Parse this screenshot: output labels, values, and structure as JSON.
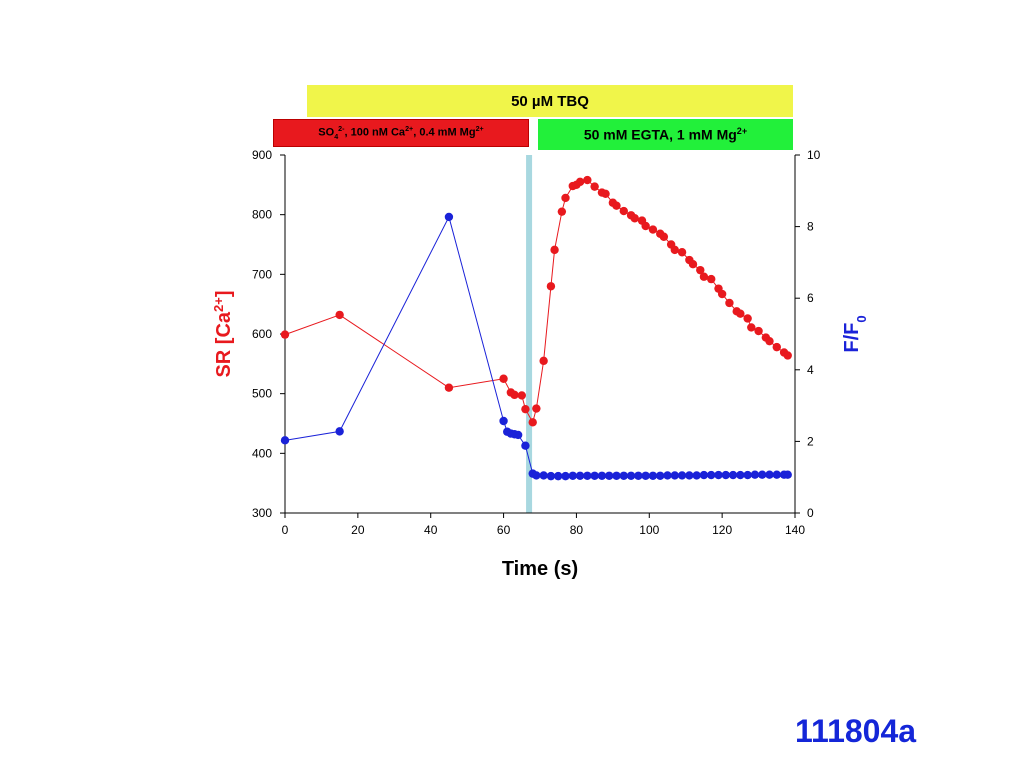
{
  "annotations": {
    "tbq": "50 µM TBQ",
    "so4_parts": [
      "SO",
      "4",
      "2-",
      ", 100 nM Ca",
      "2+",
      ", 0.4 mM Mg",
      "2+"
    ],
    "egta_parts": [
      "50 mM EGTA, 1 mM Mg",
      "2+"
    ]
  },
  "figure_id": "111804a",
  "colors": {
    "red": "#e8191e",
    "blue": "#1a22d8",
    "marker_line": "#a8d8e0",
    "tbq": "#f0f54a",
    "egta": "#22f03a"
  },
  "chart_data": {
    "type": "scatter",
    "xlabel": "Time (s)",
    "ylabel_left_parts": [
      "SR [Ca",
      "2+",
      "]"
    ],
    "ylabel_right_parts": [
      "F/F",
      "0"
    ],
    "xlim": [
      0,
      140
    ],
    "ylim_left": [
      300,
      900
    ],
    "ylim_right": [
      0,
      10
    ],
    "x_ticks": [
      0,
      20,
      40,
      60,
      80,
      100,
      120,
      140
    ],
    "y_left_ticks": [
      300,
      400,
      500,
      600,
      700,
      800,
      900
    ],
    "y_right_ticks": [
      0,
      2,
      4,
      6,
      8,
      10
    ],
    "vertical_marker_x": 67,
    "series": [
      {
        "axis": "left",
        "color": "#e8191e",
        "x": [
          0,
          15,
          45,
          60,
          62,
          63,
          65,
          66,
          68,
          69,
          71,
          73,
          74,
          76,
          77,
          79,
          80,
          81,
          83,
          85,
          87,
          88,
          90,
          91,
          93,
          95,
          96,
          98,
          99,
          101,
          103,
          104,
          106,
          107,
          109,
          111,
          112,
          114,
          115,
          117,
          119,
          120,
          122,
          124,
          125,
          127,
          128,
          130,
          132,
          133,
          135,
          137,
          138
        ],
        "y": [
          599,
          632,
          510,
          525,
          502,
          498,
          497,
          474,
          452,
          475,
          555,
          680,
          741,
          805,
          828,
          848,
          850,
          855,
          858,
          847,
          837,
          835,
          820,
          815,
          806,
          799,
          794,
          790,
          781,
          775,
          768,
          763,
          750,
          741,
          737,
          724,
          717,
          707,
          696,
          692,
          676,
          667,
          652,
          638,
          634,
          626,
          611,
          605,
          594,
          588,
          578,
          569,
          564
        ]
      },
      {
        "axis": "right",
        "color": "#1a22d8",
        "x": [
          0,
          15,
          45,
          60,
          61,
          62,
          63,
          64,
          66,
          68,
          69,
          71,
          73,
          75,
          77,
          79,
          81,
          83,
          85,
          87,
          89,
          91,
          93,
          95,
          97,
          99,
          101,
          103,
          105,
          107,
          109,
          111,
          113,
          115,
          117,
          119,
          121,
          123,
          125,
          127,
          129,
          131,
          133,
          135,
          137,
          138
        ],
        "y": [
          2.03,
          2.28,
          8.27,
          2.57,
          2.27,
          2.22,
          2.2,
          2.18,
          1.88,
          1.1,
          1.05,
          1.05,
          1.03,
          1.03,
          1.03,
          1.04,
          1.04,
          1.04,
          1.04,
          1.04,
          1.04,
          1.04,
          1.04,
          1.04,
          1.04,
          1.04,
          1.04,
          1.04,
          1.05,
          1.05,
          1.05,
          1.05,
          1.05,
          1.06,
          1.06,
          1.06,
          1.06,
          1.06,
          1.06,
          1.06,
          1.07,
          1.07,
          1.07,
          1.07,
          1.07,
          1.07
        ]
      }
    ]
  }
}
